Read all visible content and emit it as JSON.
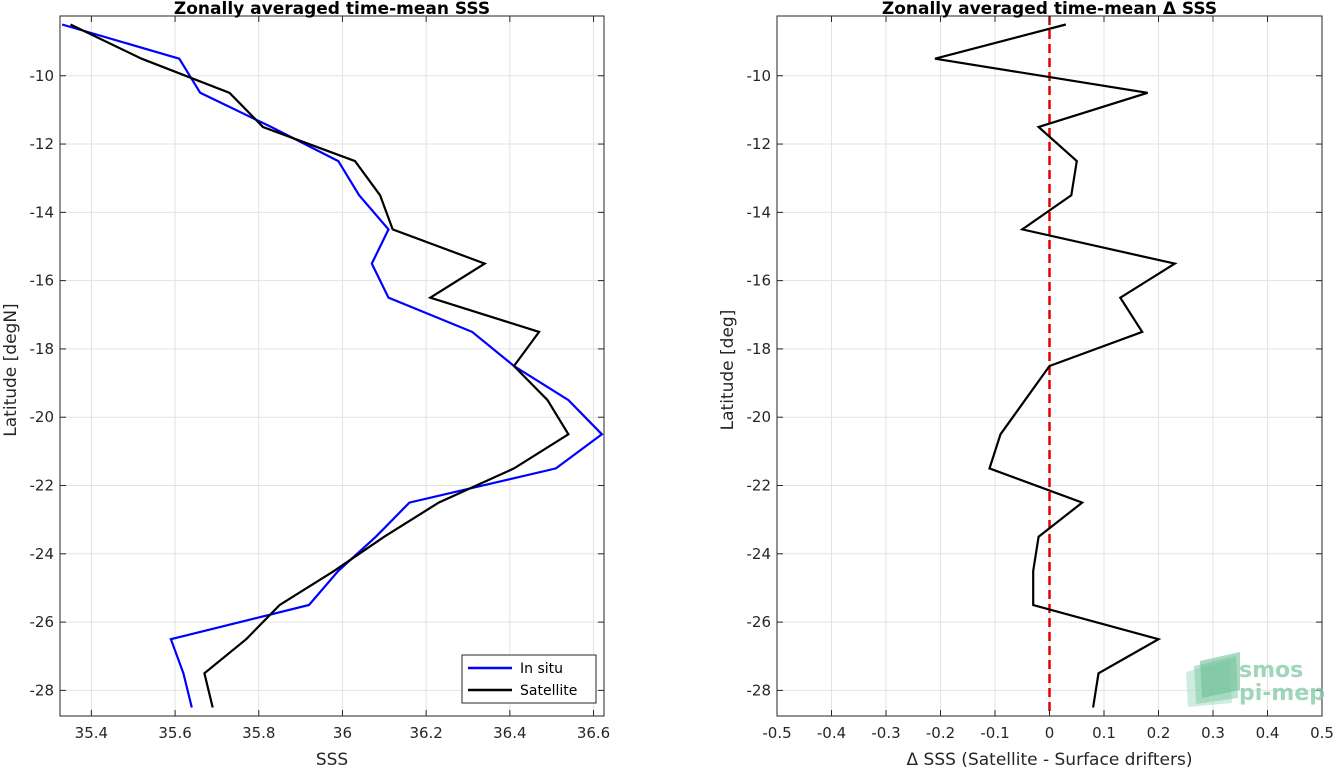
{
  "chart_data": [
    {
      "type": "line",
      "title": "Zonally averaged time-mean SSS",
      "xlabel": "SSS",
      "ylabel": "Latitude [degN]",
      "xlim": [
        35.325,
        36.625
      ],
      "ylim": [
        -28.75,
        -8.25
      ],
      "xticks": [
        "35.4",
        "35.6",
        "35.8",
        "36",
        "36.2",
        "36.4",
        "36.6"
      ],
      "yticks": [
        "-10",
        "-12",
        "-14",
        "-16",
        "-18",
        "-20",
        "-22",
        "-24",
        "-26",
        "-28"
      ],
      "grid": true,
      "legend": "bottom-right",
      "series": [
        {
          "name": "In situ",
          "color": "#0000ff",
          "x": [
            35.33,
            35.61,
            35.66,
            35.83,
            35.99,
            36.04,
            36.11,
            36.07,
            36.11,
            36.31,
            36.41,
            36.54,
            36.62,
            36.51,
            36.16,
            36.08,
            35.99,
            35.92,
            35.59,
            35.62,
            35.64
          ],
          "y": [
            -8.5,
            -9.5,
            -10.5,
            -11.5,
            -12.5,
            -13.5,
            -14.5,
            -15.5,
            -16.5,
            -17.5,
            -18.5,
            -19.5,
            -20.5,
            -21.5,
            -22.5,
            -23.5,
            -24.5,
            -25.5,
            -26.5,
            -27.5,
            -28.5
          ]
        },
        {
          "name": "Satellite",
          "color": "#000000",
          "x": [
            35.35,
            35.52,
            35.73,
            35.81,
            36.03,
            36.09,
            36.12,
            36.34,
            36.21,
            36.47,
            36.41,
            36.49,
            36.54,
            36.41,
            36.23,
            36.1,
            35.98,
            35.85,
            35.77,
            35.67,
            35.69
          ],
          "y": [
            -8.5,
            -9.5,
            -10.5,
            -11.5,
            -12.5,
            -13.5,
            -14.5,
            -15.5,
            -16.5,
            -17.5,
            -18.5,
            -19.5,
            -20.5,
            -21.5,
            -22.5,
            -23.5,
            -24.5,
            -25.5,
            -26.5,
            -27.5,
            -28.5
          ]
        }
      ]
    },
    {
      "type": "line",
      "title": "Zonally averaged time-mean Δ SSS",
      "xlabel": "Δ SSS (Satellite - Surface drifters)",
      "ylabel": "Latitude [deg]",
      "xlim": [
        -0.5,
        0.5
      ],
      "ylim": [
        -28.75,
        -8.25
      ],
      "xticks": [
        "-0.5",
        "-0.4",
        "-0.3",
        "-0.2",
        "-0.1",
        "0",
        "0.1",
        "0.2",
        "0.3",
        "0.4",
        "0.5"
      ],
      "yticks": [
        "-10",
        "-12",
        "-14",
        "-16",
        "-18",
        "-20",
        "-22",
        "-24",
        "-26",
        "-28"
      ],
      "grid": true,
      "reference_line": {
        "x": 0,
        "color": "#e60000",
        "style": "dashed"
      },
      "series": [
        {
          "color": "#000000",
          "x": [
            0.03,
            -0.21,
            0.18,
            -0.02,
            0.05,
            0.04,
            -0.05,
            0.23,
            0.13,
            0.17,
            0.0,
            -0.09,
            -0.11,
            0.06,
            -0.02,
            -0.03,
            -0.03,
            0.2,
            0.09,
            0.08
          ],
          "y": [
            -8.5,
            -9.5,
            -10.5,
            -11.5,
            -12.5,
            -13.5,
            -14.5,
            -15.5,
            -16.5,
            -17.5,
            -18.5,
            -20.5,
            -21.5,
            -22.5,
            -23.5,
            -24.5,
            -25.5,
            -26.5,
            -27.5,
            -28.5
          ]
        }
      ]
    }
  ],
  "watermark": {
    "line1": "smos",
    "line2": "pi-mep",
    "color": "#7fc8a5"
  }
}
